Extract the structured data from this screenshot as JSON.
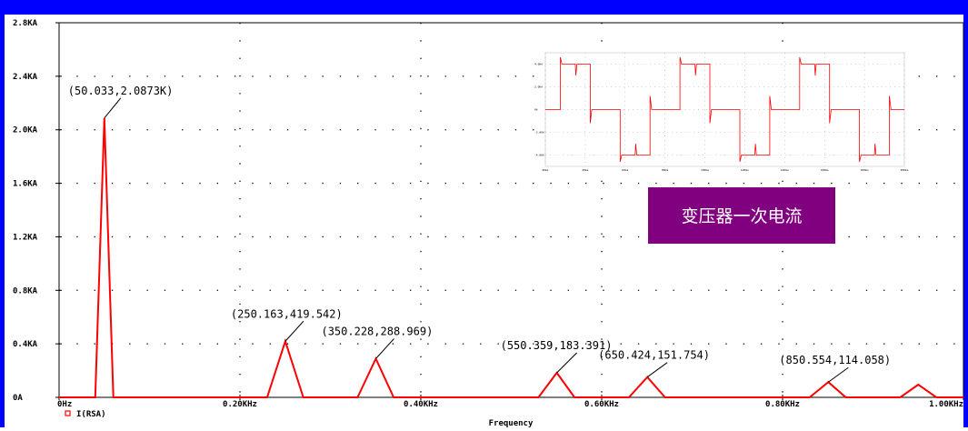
{
  "colors": {
    "frame": "#0000ff",
    "trace": "#ff0000",
    "label_bg": "#800080",
    "label_text": "#ffffff",
    "grid": "#000000"
  },
  "chart_data": {
    "type": "line",
    "title": "",
    "xlabel": "Frequency",
    "ylabel": "",
    "xlim": [
      0,
      1000
    ],
    "ylim": [
      0,
      2800
    ],
    "grid": "dotted",
    "x_ticks": [
      {
        "value": 0,
        "label": "0Hz"
      },
      {
        "value": 200,
        "label": "0.20KHz"
      },
      {
        "value": 400,
        "label": "0.40KHz"
      },
      {
        "value": 600,
        "label": "0.60KHz"
      },
      {
        "value": 800,
        "label": "0.80KHz"
      },
      {
        "value": 1000,
        "label": "1.00KHz"
      }
    ],
    "y_ticks": [
      {
        "value": 0,
        "label": "0A"
      },
      {
        "value": 400,
        "label": "0.4KA"
      },
      {
        "value": 800,
        "label": "0.8KA"
      },
      {
        "value": 1200,
        "label": "1.2KA"
      },
      {
        "value": 1600,
        "label": "1.6KA"
      },
      {
        "value": 2000,
        "label": "2.0KA"
      },
      {
        "value": 2400,
        "label": "2.4KA"
      },
      {
        "value": 2800,
        "label": "2.8KA"
      }
    ],
    "legend": {
      "marker": "square",
      "label": "I(RSA)",
      "position": "bottom-left"
    },
    "series": [
      {
        "name": "I(RSA)",
        "x": [
          0,
          40,
          50.033,
          60,
          230,
          250.163,
          270,
          330,
          350.228,
          370,
          530,
          550.359,
          570,
          630,
          650.424,
          670,
          830,
          850.554,
          870,
          930,
          950,
          970,
          1000
        ],
        "y": [
          0,
          0,
          2087.3,
          0,
          0,
          419.542,
          0,
          0,
          288.969,
          0,
          0,
          183.391,
          0,
          0,
          151.754,
          0,
          0,
          114.058,
          0,
          0,
          95,
          0,
          0
        ]
      }
    ],
    "annotations": [
      {
        "x": 50.033,
        "y": 2087.3,
        "text": "(50.033,2.0873K)"
      },
      {
        "x": 250.163,
        "y": 419.542,
        "text": "(250.163,419.542)"
      },
      {
        "x": 350.228,
        "y": 288.969,
        "text": "(350.228,288.969)"
      },
      {
        "x": 550.359,
        "y": 183.391,
        "text": "(550.359,183.391)"
      },
      {
        "x": 650.424,
        "y": 151.754,
        "text": "(650.424,151.754)"
      },
      {
        "x": 850.554,
        "y": 114.058,
        "text": "(850.554,114.058)"
      }
    ],
    "inset": {
      "type": "line",
      "description_label": "变压器一次电流",
      "x_ticks": [
        "20ms",
        "40ms",
        "60ms",
        "80ms",
        "100ms",
        "120ms",
        "140ms",
        "160ms",
        "180ms",
        "200ms"
      ],
      "y_ticks": [
        "4.0KA",
        "2.0KA",
        "0A",
        "-2.0KA",
        "-4.0KA"
      ],
      "ylim": [
        -5,
        5
      ],
      "waveform": {
        "period_ms": 60,
        "levels": [
          0,
          4.0,
          0,
          -4.0
        ],
        "x_start_ms": 20,
        "x_end_ms": 200
      }
    }
  }
}
